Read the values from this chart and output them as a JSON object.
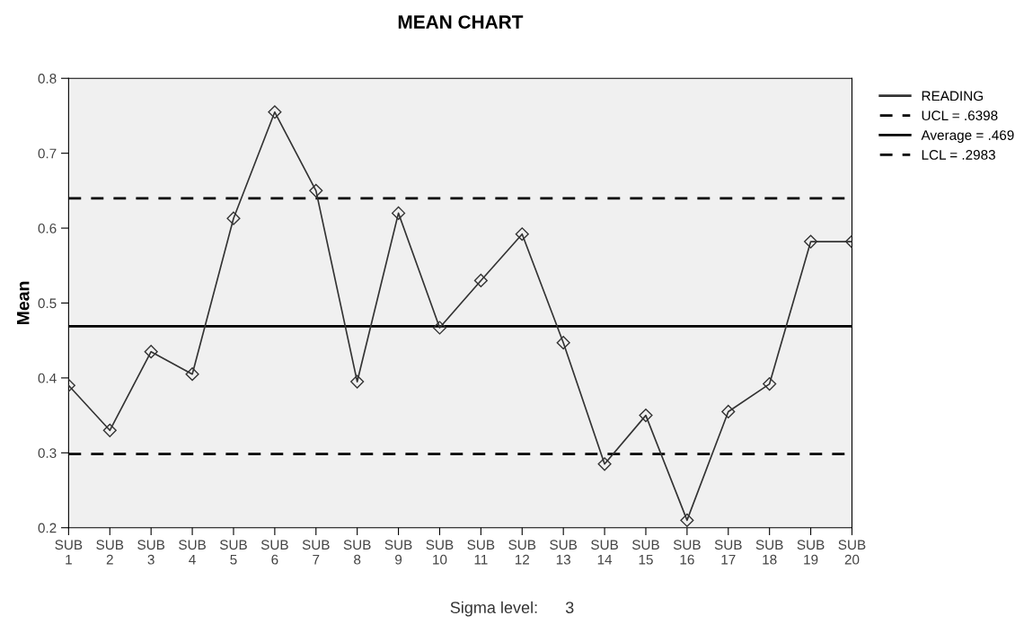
{
  "chart_data": {
    "type": "line",
    "title": "MEAN CHART",
    "ylabel": "Mean",
    "categories": [
      "SUB\n1",
      "SUB\n2",
      "SUB\n3",
      "SUB\n4",
      "SUB\n5",
      "SUB\n6",
      "SUB\n7",
      "SUB\n8",
      "SUB\n9",
      "SUB\n10",
      "SUB\n11",
      "SUB\n12",
      "SUB\n13",
      "SUB\n14",
      "SUB\n15",
      "SUB\n16",
      "SUB\n17",
      "SUB\n18",
      "SUB\n19",
      "SUB\n20"
    ],
    "series": [
      {
        "name": "READING",
        "color": "#333333",
        "values": [
          0.39,
          0.33,
          0.435,
          0.405,
          0.613,
          0.755,
          0.65,
          0.395,
          0.62,
          0.467,
          0.53,
          0.592,
          0.447,
          0.285,
          0.35,
          0.21,
          0.355,
          0.392,
          0.582,
          0.582
        ]
      }
    ],
    "ref_lines": [
      {
        "axis": "y",
        "value": 0.6398,
        "label": "UCL = .6398",
        "color": "#000000",
        "line_style": "dashed"
      },
      {
        "axis": "y",
        "value": 0.469,
        "label": "Average = .469",
        "color": "#000000",
        "line_style": "solid"
      },
      {
        "axis": "y",
        "value": 0.2983,
        "label": "LCL = .2983",
        "color": "#000000",
        "line_style": "dashed"
      }
    ],
    "ylim": [
      0.2,
      0.8
    ],
    "yticks": [
      0.2,
      0.3,
      0.4,
      0.5,
      0.6,
      0.7,
      0.8
    ],
    "marker": "diamond",
    "line_style": "solid",
    "grid": false,
    "legend": "top right",
    "annotations": [
      "Sigma level:      3"
    ]
  }
}
